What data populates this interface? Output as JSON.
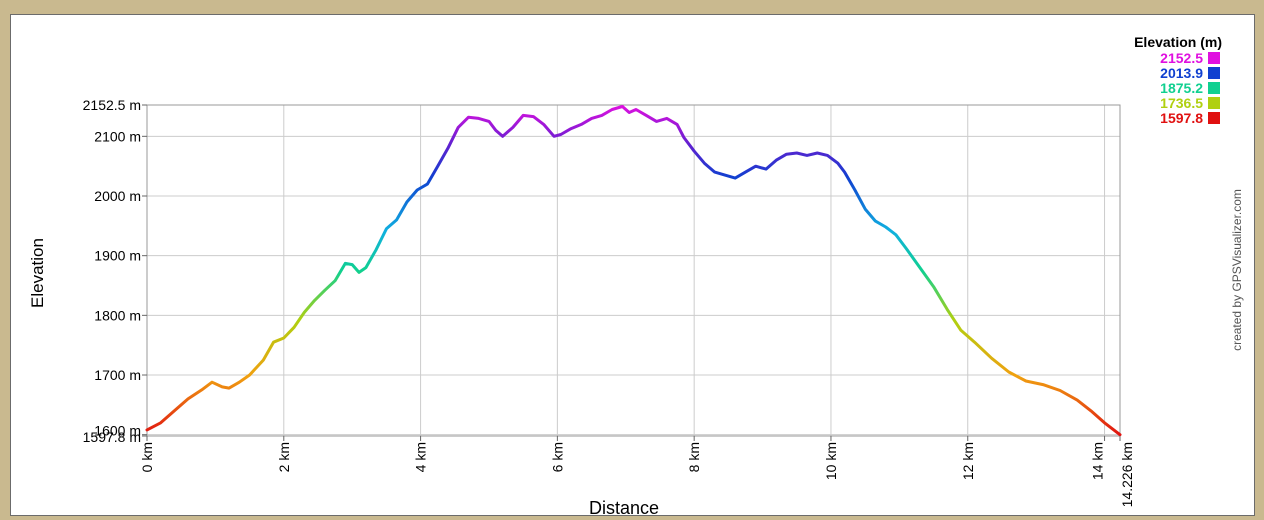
{
  "chart_data": {
    "type": "line",
    "xlabel": "Distance",
    "ylabel": "Elevation",
    "x_unit": "km",
    "y_unit": "m",
    "xlim": [
      0,
      14.226
    ],
    "ylim": [
      1597.8,
      2152.5
    ],
    "x_ticks": [
      {
        "value": 0,
        "label": "0 km"
      },
      {
        "value": 2,
        "label": "2 km"
      },
      {
        "value": 4,
        "label": "4 km"
      },
      {
        "value": 6,
        "label": "6 km"
      },
      {
        "value": 8,
        "label": "8 km"
      },
      {
        "value": 10,
        "label": "10 km"
      },
      {
        "value": 12,
        "label": "12 km"
      },
      {
        "value": 14,
        "label": "14 km"
      },
      {
        "value": 14.226,
        "label": "14.226 km"
      }
    ],
    "y_ticks": [
      {
        "value": 1597.8,
        "label": "1597.8 m"
      },
      {
        "value": 1600,
        "label": "1600 m"
      },
      {
        "value": 1700,
        "label": "1700 m"
      },
      {
        "value": 1800,
        "label": "1800 m"
      },
      {
        "value": 1900,
        "label": "1900 m"
      },
      {
        "value": 2000,
        "label": "2000 m"
      },
      {
        "value": 2100,
        "label": "2100 m"
      },
      {
        "value": 2152.5,
        "label": "2152.5 m"
      }
    ],
    "grid": true,
    "legend": {
      "title": "Elevation (m)",
      "placement": "top-right",
      "entries": [
        {
          "label": "2152.5",
          "color": "#e010e0"
        },
        {
          "label": "2013.9",
          "color": "#1040d0"
        },
        {
          "label": "1875.2",
          "color": "#10d090"
        },
        {
          "label": "1736.5",
          "color": "#b0d010"
        },
        {
          "label": "1597.8",
          "color": "#e01010"
        }
      ]
    },
    "color_scale": "elevation gradient (red low → yellow → green → cyan → blue → magenta high)",
    "credit": "created by GPSVisualizer.com",
    "series": [
      {
        "x": [
          0,
          0.2,
          0.4,
          0.6,
          0.8,
          0.95,
          1.1,
          1.2,
          1.35,
          1.5,
          1.7,
          1.85,
          2.0,
          2.15,
          2.3,
          2.45,
          2.6,
          2.75,
          2.9,
          3.0,
          3.1,
          3.2,
          3.35,
          3.5,
          3.65,
          3.8,
          3.95,
          4.1,
          4.25,
          4.4,
          4.55,
          4.7,
          4.85,
          5.0,
          5.1,
          5.2,
          5.35,
          5.5,
          5.65,
          5.8,
          5.95,
          6.05,
          6.2,
          6.35,
          6.5,
          6.65,
          6.8,
          6.95,
          7.05,
          7.15,
          7.3,
          7.45,
          7.6,
          7.75,
          7.85,
          8.0,
          8.15,
          8.3,
          8.45,
          8.6,
          8.75,
          8.9,
          9.05,
          9.2,
          9.35,
          9.5,
          9.65,
          9.8,
          9.95,
          10.1,
          10.2,
          10.35,
          10.5,
          10.65,
          10.8,
          10.95,
          11.1,
          11.3,
          11.5,
          11.7,
          11.9,
          12.1,
          12.35,
          12.6,
          12.85,
          13.1,
          13.35,
          13.6,
          13.8,
          14.0,
          14.226
        ],
        "y": [
          1608,
          1620,
          1640,
          1660,
          1675,
          1688,
          1680,
          1678,
          1688,
          1700,
          1725,
          1755,
          1762,
          1780,
          1805,
          1825,
          1842,
          1858,
          1887,
          1885,
          1872,
          1880,
          1910,
          1945,
          1960,
          1990,
          2010,
          2020,
          2050,
          2080,
          2115,
          2132,
          2130,
          2125,
          2110,
          2100,
          2115,
          2135,
          2133,
          2120,
          2100,
          2103,
          2113,
          2120,
          2130,
          2135,
          2145,
          2150,
          2140,
          2145,
          2135,
          2125,
          2130,
          2120,
          2098,
          2075,
          2055,
          2040,
          2035,
          2030,
          2040,
          2050,
          2045,
          2060,
          2070,
          2072,
          2068,
          2072,
          2068,
          2055,
          2040,
          2010,
          1978,
          1958,
          1948,
          1935,
          1912,
          1880,
          1848,
          1810,
          1775,
          1755,
          1728,
          1705,
          1690,
          1684,
          1674,
          1658,
          1640,
          1620,
          1600
        ]
      }
    ]
  }
}
